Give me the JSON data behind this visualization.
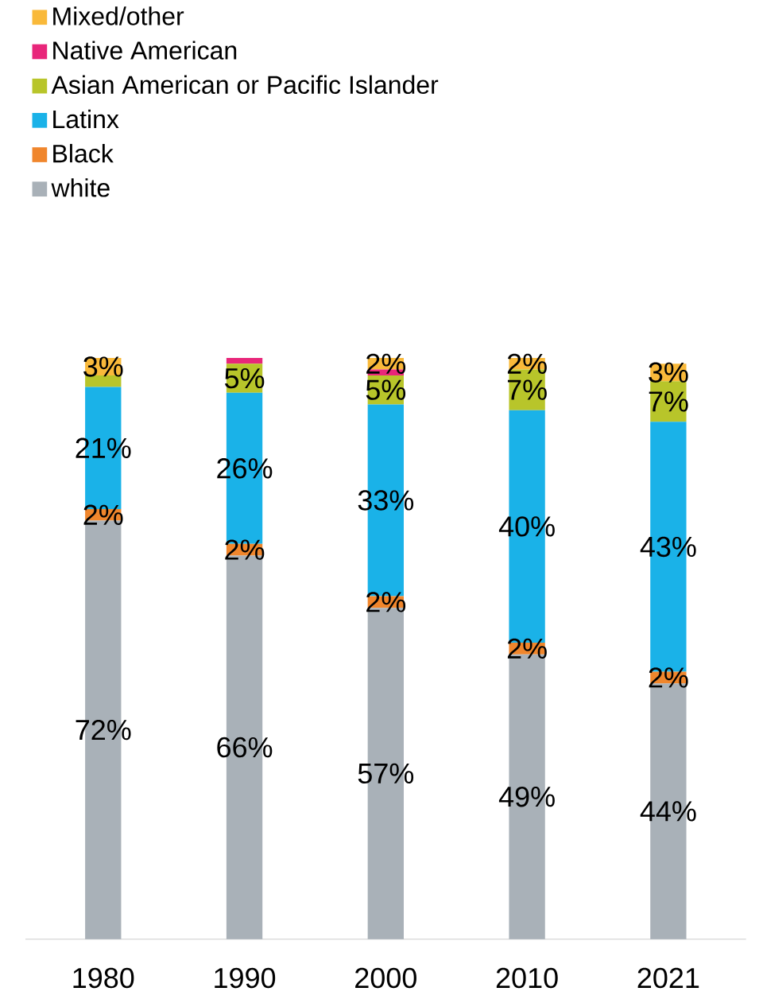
{
  "chart_data": {
    "type": "bar",
    "stacked": true,
    "legend": "top left",
    "categories": [
      "1980",
      "1990",
      "2000",
      "2010",
      "2021"
    ],
    "series": [
      {
        "name": "white",
        "color": "#a9b1b8",
        "values": [
          72,
          66,
          57,
          49,
          44
        ],
        "value_labels": [
          "72%",
          "66%",
          "57%",
          "49%",
          "44%"
        ]
      },
      {
        "name": "Black",
        "color": "#f0862c",
        "values": [
          2,
          2,
          2,
          2,
          2
        ],
        "value_labels": [
          "2%",
          "2%",
          "2%",
          "2%",
          "2%"
        ]
      },
      {
        "name": "Latinx",
        "color": "#1ab2e8",
        "values": [
          21,
          26,
          33,
          40,
          43
        ],
        "value_labels": [
          "21%",
          "26%",
          "33%",
          "40%",
          "43%"
        ]
      },
      {
        "name": "Asian American or Pacific Islander",
        "color": "#b8c52a",
        "values": [
          2,
          5,
          5,
          7,
          7
        ],
        "value_labels": [
          null,
          "5%",
          "5%",
          "7%",
          "7%"
        ]
      },
      {
        "name": "Native American",
        "color": "#e8267a",
        "values": [
          0,
          1,
          1,
          0,
          0
        ],
        "value_labels": [
          null,
          null,
          null,
          null,
          null
        ]
      },
      {
        "name": "Mixed/other",
        "color": "#f9b93a",
        "values": [
          3,
          0,
          2,
          2,
          3
        ],
        "value_labels": [
          "3%",
          null,
          "2%",
          "2%",
          "3%"
        ]
      }
    ]
  }
}
